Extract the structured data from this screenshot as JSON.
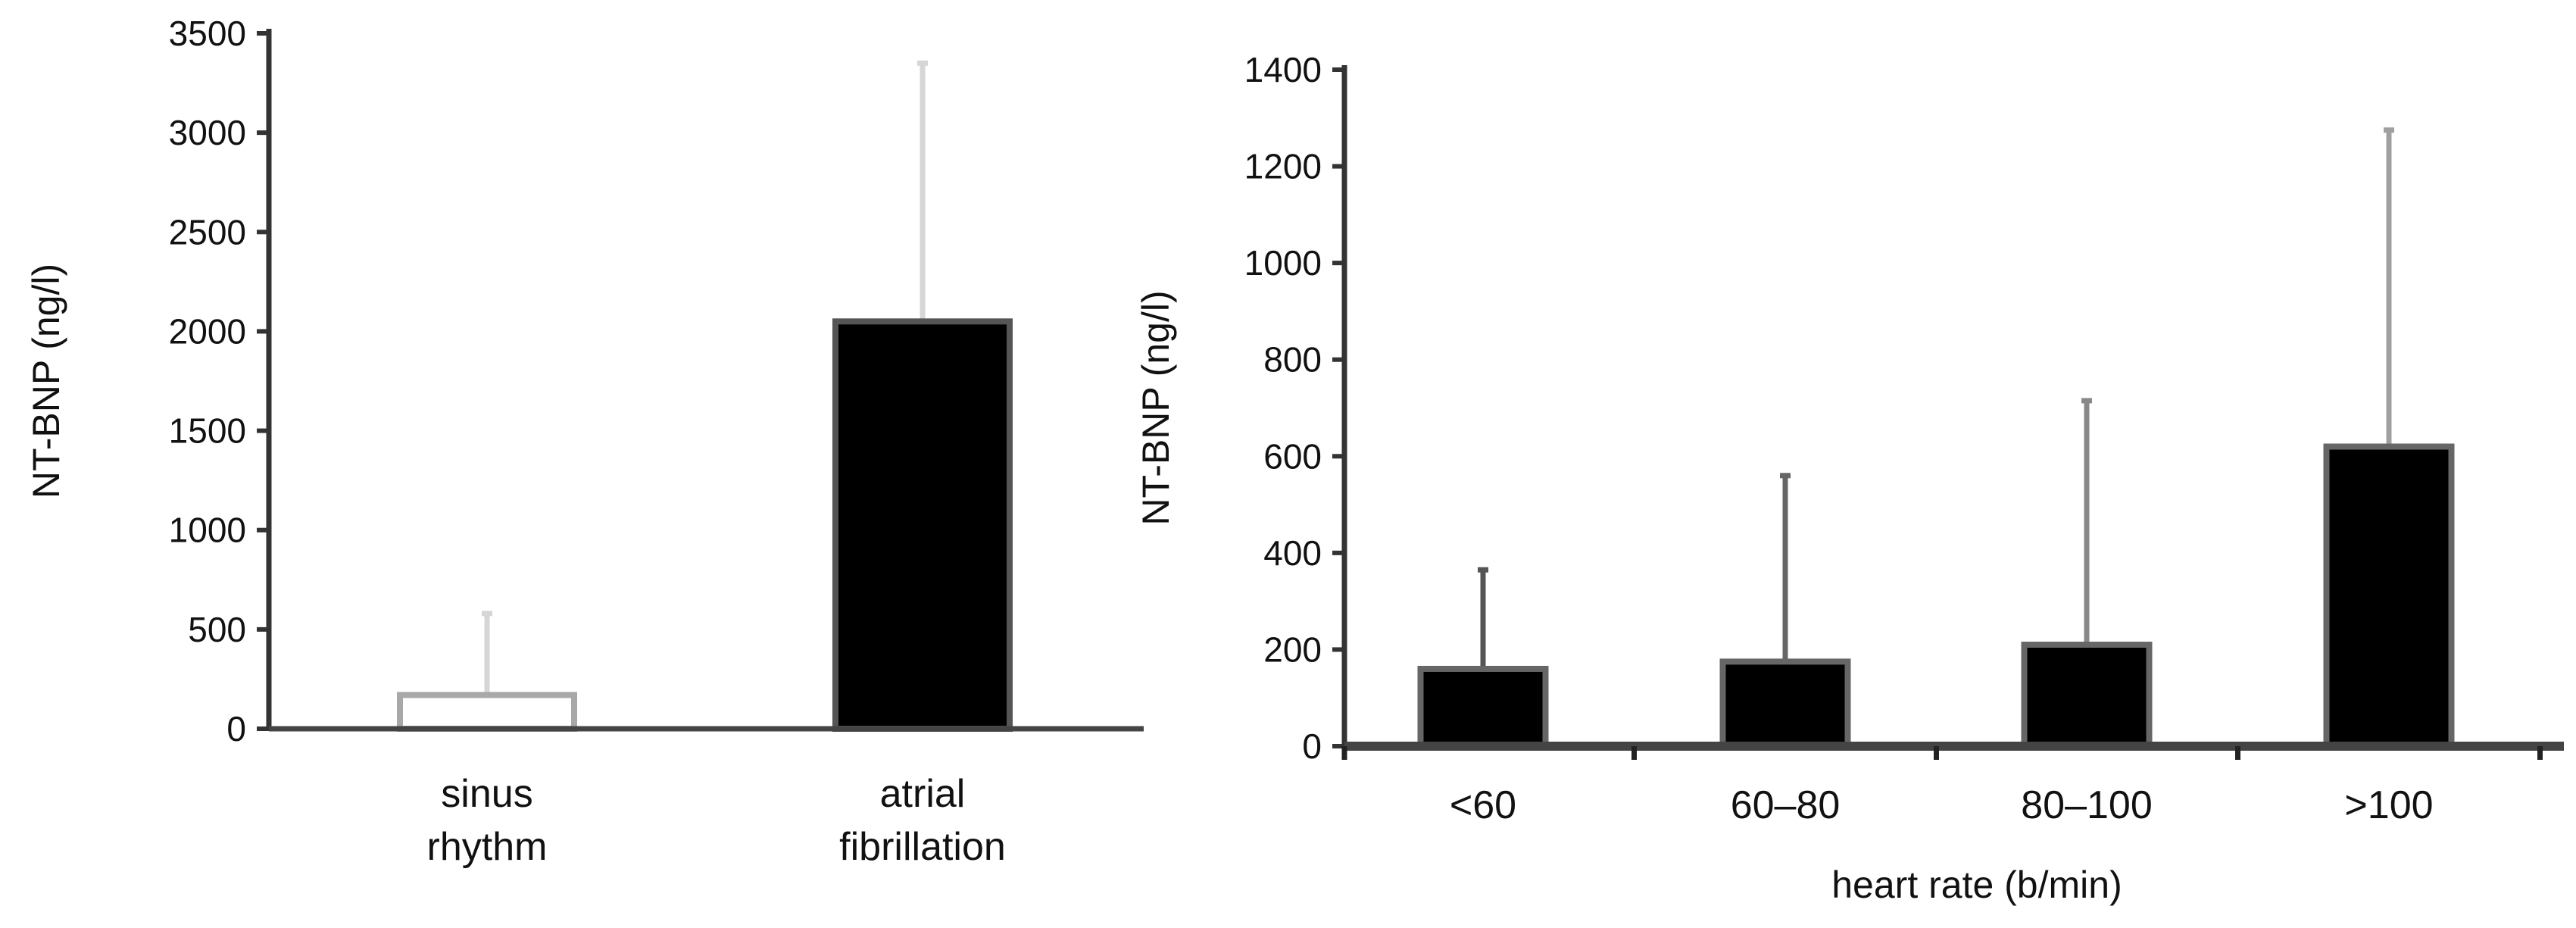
{
  "chart_data": [
    {
      "type": "bar",
      "categories": [
        [
          "sinus",
          "rhythm"
        ],
        [
          "atrial",
          "fibrillation"
        ]
      ],
      "values": [
        170,
        2050
      ],
      "error_upper": [
        580,
        3350
      ],
      "bar_fill": [
        "#ffffff",
        "#000000"
      ],
      "bar_stroke": [
        "#a8a8a8",
        "#555555"
      ],
      "error_color": [
        "#d6d6d6",
        "#d6d6d6"
      ],
      "title": "",
      "xlabel": "",
      "ylabel": "NT-BNP (ng/l)",
      "ylim": [
        0,
        3500
      ],
      "yticks": [
        0,
        500,
        1000,
        1500,
        2000,
        2500,
        3000,
        3500
      ],
      "grid": false
    },
    {
      "type": "bar",
      "categories": [
        [
          "<60"
        ],
        [
          "60–80"
        ],
        [
          "80–100"
        ],
        [
          ">100"
        ]
      ],
      "values": [
        160,
        175,
        210,
        620
      ],
      "error_upper": [
        365,
        560,
        715,
        1275
      ],
      "bar_fill": [
        "#000000",
        "#000000",
        "#000000",
        "#000000"
      ],
      "bar_stroke": [
        "#666666",
        "#666666",
        "#666666",
        "#666666"
      ],
      "error_color": [
        "#555555",
        "#666666",
        "#888888",
        "#a0a0a0"
      ],
      "title": "",
      "xlabel": "heart rate (b/min)",
      "ylabel": "NT-BNP (ng/l)",
      "ylim": [
        0,
        1400
      ],
      "yticks": [
        0,
        200,
        400,
        600,
        800,
        1000,
        1200,
        1400
      ],
      "grid": false
    }
  ]
}
